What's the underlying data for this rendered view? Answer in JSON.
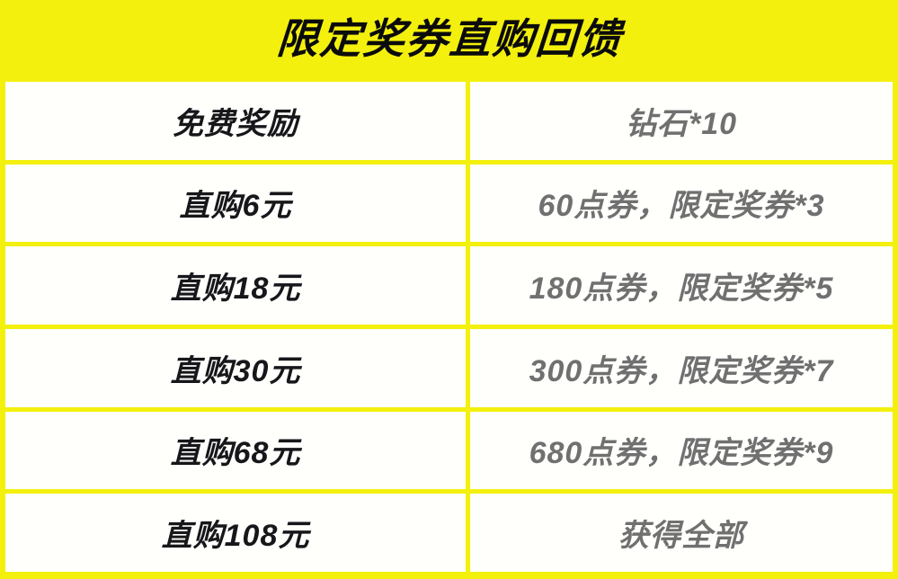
{
  "title": "限定奖券直购回馈",
  "colors": {
    "accent_yellow": "#F3F00E",
    "cell_background": "#FFFFFC",
    "title_text": "#0B0B0B",
    "label_text": "#17171B",
    "value_text": "#707070"
  },
  "table": {
    "rows": [
      {
        "label": "免费奖励",
        "value": "钻石*10"
      },
      {
        "label": "直购6元",
        "value": "60点券，限定奖券*3"
      },
      {
        "label": "直购18元",
        "value": "180点券，限定奖券*5"
      },
      {
        "label": "直购30元",
        "value": "300点券，限定奖券*7"
      },
      {
        "label": "直购68元",
        "value": "680点券，限定奖券*9"
      },
      {
        "label": "直购108元",
        "value": "获得全部"
      }
    ]
  }
}
